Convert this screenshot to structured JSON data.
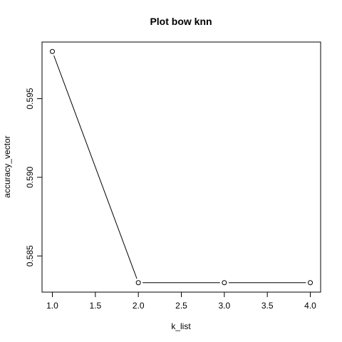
{
  "chart_data": {
    "type": "line",
    "title": "Plot bow knn",
    "xlabel": "k_list",
    "ylabel": "accuracy_vector",
    "x": [
      1,
      2,
      3,
      4
    ],
    "series": [
      {
        "values": [
          0.598,
          0.5833,
          0.5833,
          0.5833
        ]
      }
    ],
    "xlim": [
      0.88,
      4.12
    ],
    "ylim": [
      0.5827,
      0.5986
    ],
    "xticks": [
      1.0,
      1.5,
      2.0,
      2.5,
      3.0,
      3.5,
      4.0
    ],
    "xtick_labels": [
      "1.0",
      "1.5",
      "2.0",
      "2.5",
      "3.0",
      "3.5",
      "4.0"
    ],
    "yticks": [
      0.585,
      0.59,
      0.595
    ],
    "ytick_labels": [
      "0.585",
      "0.590",
      "0.595"
    ],
    "grid": false,
    "marker": "open-circle",
    "line_color": "#000000"
  }
}
